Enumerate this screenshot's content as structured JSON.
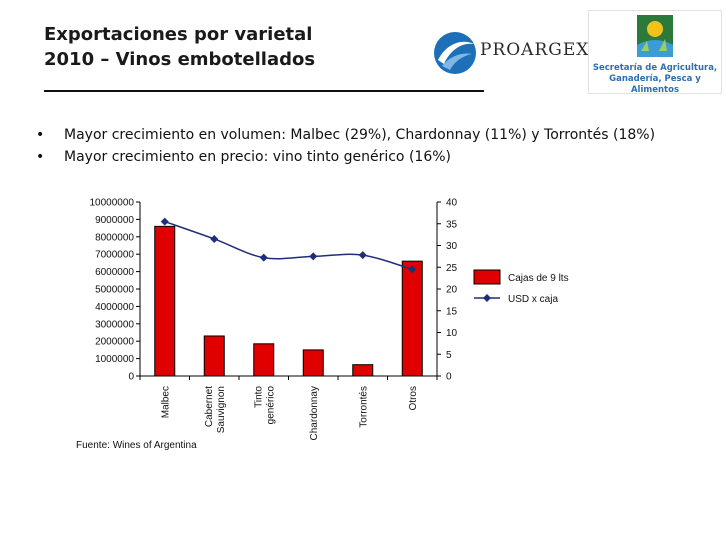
{
  "header": {
    "title_line1": "Exportaciones por varietal",
    "title_line2": "2010 – Vinos embotellados",
    "logo_text": "PROARGEX",
    "ministry_line1": "Secretaría de Agricultura,",
    "ministry_line2": "Ganadería, Pesca y Alimentos"
  },
  "bullets": [
    {
      "symbol": "•",
      "text": "Mayor crecimiento en volumen: Malbec (29%), Chardonnay (11%) y Torrontés (18%)"
    },
    {
      "symbol": "•",
      "text": "Mayor crecimiento en precio: vino tinto genérico (16%)"
    }
  ],
  "source": "Fuente: Wines of Argentina",
  "colors": {
    "bar": "#e00000",
    "line": "#1f2e7a",
    "marker": "#1f2e7a"
  },
  "chart_data": {
    "type": "bar",
    "categories": [
      "Malbec",
      "Cabernet Sauvignon",
      "Tinto genérico",
      "Chardonnay",
      "Torrontés",
      "Otros"
    ],
    "category_label_lines": [
      [
        "Malbec"
      ],
      [
        "Cabernet",
        "Sauvignon"
      ],
      [
        "Tinto",
        "genérico"
      ],
      [
        "Chardonnay"
      ],
      [
        "Torrontés"
      ],
      [
        "Otros"
      ]
    ],
    "series": [
      {
        "name": "Cajas de 9 lts",
        "type": "bar",
        "axis": "left",
        "values": [
          8600000,
          2300000,
          1850000,
          1500000,
          650000,
          6600000
        ]
      },
      {
        "name": "USD x caja",
        "type": "line",
        "axis": "right",
        "values": [
          35.5,
          31.5,
          27.2,
          27.5,
          27.8,
          24.5
        ]
      }
    ],
    "y_left": {
      "ylim": [
        0,
        10000000
      ],
      "ticks": [
        "0",
        "1000000",
        "2000000",
        "3000000",
        "4000000",
        "5000000",
        "6000000",
        "7000000",
        "8000000",
        "9000000",
        "10000000"
      ]
    },
    "y_right": {
      "ylim": [
        0,
        40
      ],
      "ticks": [
        "0",
        "5",
        "10",
        "15",
        "20",
        "25",
        "30",
        "35",
        "40"
      ]
    },
    "title": "",
    "xlabel": "",
    "ylabel": "",
    "legend": "right",
    "grid": false
  }
}
